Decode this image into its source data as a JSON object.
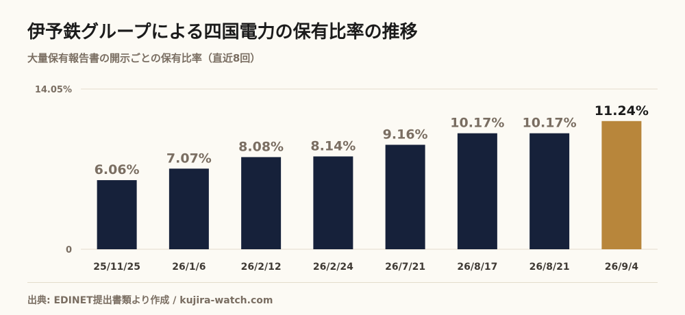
{
  "header": {
    "title": "伊予鉄グループによる四国電力の保有比率の推移",
    "subtitle": "大量保有報告書の開示ごとの保有比率（直近8回）"
  },
  "footer": {
    "source": "出典: EDINET提出書類より作成 / kujira-watch.com"
  },
  "colors": {
    "bar": "#16213a",
    "highlight": "#b8863b",
    "grid": "#e3dccb",
    "label": "#7a6e62"
  },
  "chart_data": {
    "type": "bar",
    "categories": [
      "25/11/25",
      "26/1/6",
      "26/2/12",
      "26/2/24",
      "26/7/21",
      "26/8/17",
      "26/8/21",
      "26/9/4"
    ],
    "values": [
      6.06,
      7.07,
      8.08,
      8.14,
      9.16,
      10.17,
      10.17,
      11.24
    ],
    "value_labels": [
      "6.06%",
      "7.07%",
      "8.08%",
      "8.14%",
      "9.16%",
      "10.17%",
      "10.17%",
      "11.24%"
    ],
    "highlight_index": 7,
    "ylim": [
      0,
      14.05
    ],
    "y_ticks": [
      0,
      14.05
    ],
    "y_tick_labels": [
      "0",
      "14.05%"
    ],
    "grid": true
  }
}
